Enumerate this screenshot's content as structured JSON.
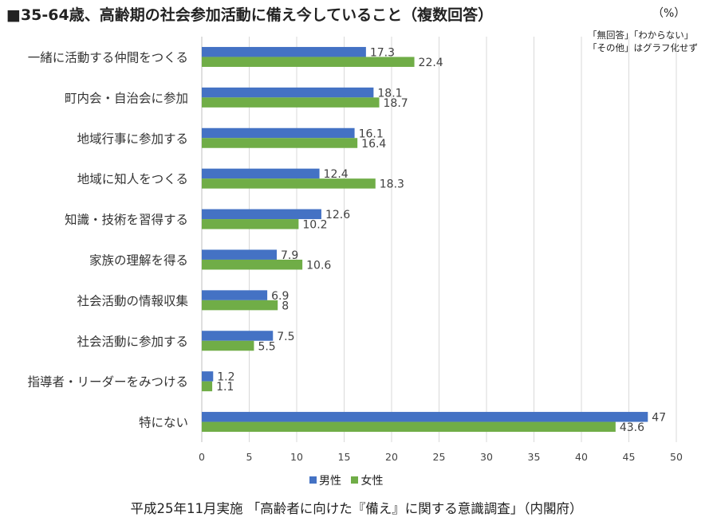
{
  "title": "■35-64歳、高齢期の社会参加活動に備え今していること（複数回答）",
  "unit_label": "（%）",
  "note_lines": [
    "「無回答」「わからない」",
    "「その他」はグラフ化せず"
  ],
  "source": "平成25年11月実施 「高齢者に向けた『備え』に関する意識調査」（内閣府）",
  "colors": {
    "male": "#4472C4",
    "female": "#70AD47",
    "grid": "#D9D9D9",
    "axis": "#BFBFBF"
  },
  "chart_data": {
    "type": "bar",
    "orientation": "horizontal",
    "categories": [
      "一緒に活動する仲間をつくる",
      "町内会・自治会に参加",
      "地域行事に参加する",
      "地域に知人をつくる",
      "知識・技術を習得する",
      "家族の理解を得る",
      "社会活動の情報収集",
      "社会活動に参加する",
      "指導者・リーダーをみつける",
      "特にない"
    ],
    "series": [
      {
        "name": "男性",
        "color": "#4472C4",
        "values": [
          17.3,
          18.1,
          16.1,
          12.4,
          12.6,
          7.9,
          6.9,
          7.5,
          1.2,
          47
        ]
      },
      {
        "name": "女性",
        "color": "#70AD47",
        "values": [
          22.4,
          18.7,
          16.4,
          18.3,
          10.2,
          10.6,
          8,
          5.5,
          1.1,
          43.6
        ]
      }
    ],
    "xlim": [
      0,
      50
    ],
    "xticks": [
      0,
      5,
      10,
      15,
      20,
      25,
      30,
      35,
      40,
      45,
      50
    ],
    "grid": true,
    "legend_position": "bottom"
  }
}
